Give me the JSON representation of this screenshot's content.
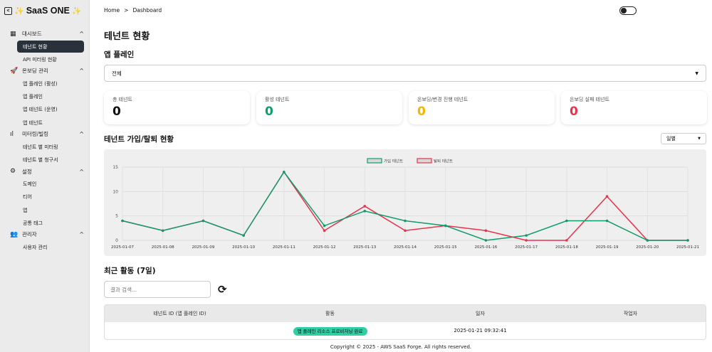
{
  "app": {
    "title": "SaaS ONE"
  },
  "sidebar": {
    "groups": [
      {
        "label": "대시보드",
        "items": [
          "테넌트 현황",
          "API 미터링 현황"
        ]
      },
      {
        "label": "온보딩 관리",
        "items": [
          "앱 플레인 (활성)",
          "앱 플레인",
          "앱 테넌트 (운영)",
          "앱 테넌트"
        ]
      },
      {
        "label": "미터링/빌링",
        "items": [
          "테넌트 별 미터링",
          "테넌트 별 청구서"
        ]
      },
      {
        "label": "설정",
        "items": [
          "도메인",
          "티어",
          "앱",
          "공통 태그"
        ]
      },
      {
        "label": "관리자",
        "items": [
          "사용자 관리"
        ]
      }
    ],
    "active": "테넌트 현황"
  },
  "breadcrumb": {
    "home": "Home",
    "sep": ">",
    "current": "Dashboard"
  },
  "page": {
    "title": "테넌트 현황",
    "app_plane_label": "앱 플레인",
    "app_plane_value": "전체"
  },
  "cards": [
    {
      "label": "총 테넌트",
      "value": "0",
      "color": "#111111"
    },
    {
      "label": "활성 테넌트",
      "value": "0",
      "color": "#0f9d6b"
    },
    {
      "label": "온보딩/변경 진행 테넌트",
      "value": "0",
      "color": "#f5b400"
    },
    {
      "label": "온보딩 실패 테넌트",
      "value": "0",
      "color": "#e8334a"
    }
  ],
  "trend": {
    "title": "테넌트 가입/탈퇴 현황",
    "period": "일별"
  },
  "chart_data": {
    "type": "line",
    "x": [
      "2025-01-07",
      "2025-01-08",
      "2025-01-09",
      "2025-01-10",
      "2025-01-11",
      "2025-01-12",
      "2025-01-13",
      "2025-01-14",
      "2025-01-15",
      "2025-01-16",
      "2025-01-17",
      "2025-01-18",
      "2025-01-19",
      "2025-01-20",
      "2025-01-21"
    ],
    "series": [
      {
        "name": "가입 테넌트",
        "color": "#0f9d6b",
        "values": [
          4,
          2,
          4,
          1,
          14,
          3,
          6,
          4,
          3,
          0,
          1,
          4,
          4,
          0,
          0
        ]
      },
      {
        "name": "탈퇴 테넌트",
        "color": "#e8334a",
        "values": [
          4,
          2,
          4,
          1,
          14,
          2,
          7,
          2,
          3,
          2,
          0,
          0,
          9,
          0,
          0
        ]
      }
    ],
    "ylim": [
      0,
      15
    ],
    "yticks": [
      "0",
      "5",
      "10",
      "15"
    ],
    "legend": "top-center",
    "grid": true
  },
  "activity": {
    "title": "최근 활동 (7일)",
    "search_placeholder": "결과 검색...",
    "columns": [
      "테넌트 ID (앱 플레인 ID)",
      "활동",
      "일자",
      "작업자"
    ],
    "rows": [
      {
        "tenant": "",
        "activity": "앱 플레인 리소스 프로비저닝 완료",
        "date": "2025-01-21 09:32:41",
        "user": ""
      }
    ]
  },
  "footer": "Copyright © 2025 - AWS SaaS Forge. All rights reserved."
}
